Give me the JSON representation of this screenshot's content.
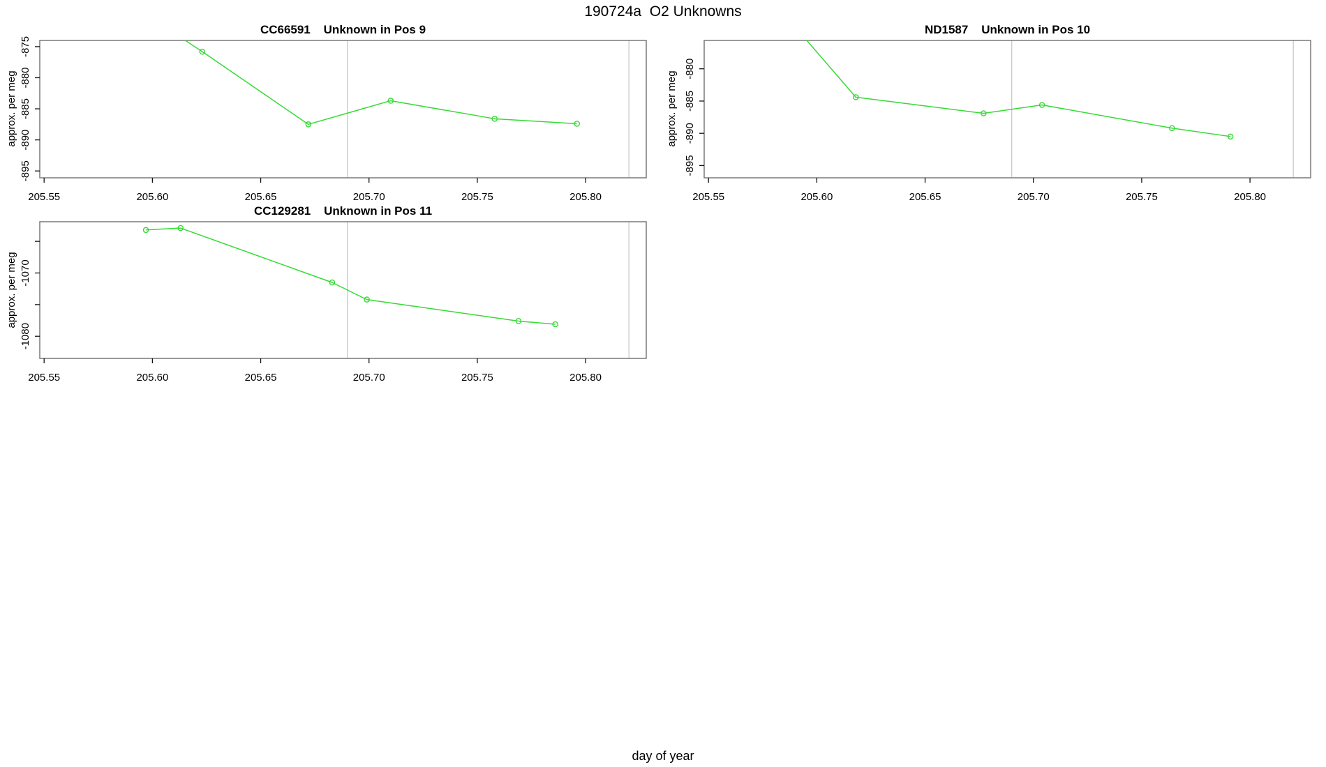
{
  "main_title": "190724a  O2 Unknowns",
  "outer_xlabel": "day of year",
  "colors": {
    "line": "#35DB35",
    "box": "#787878",
    "ref_line": "#c9c9c9",
    "tick": "#111111",
    "text": "#000000",
    "background": "#ffffff"
  },
  "chart_data": [
    {
      "type": "line",
      "title": "CC66591    Unknown in Pos 9",
      "xlabel": "",
      "ylabel": "approx. per meg",
      "marker": "open-circle",
      "grid": false,
      "xlim": [
        205.548,
        205.828
      ],
      "ylim": [
        -896.1,
        -874.0
      ],
      "x_ticks": [
        205.55,
        205.6,
        205.65,
        205.7,
        205.75,
        205.8
      ],
      "x_tick_labels": [
        "205.55",
        "205.60",
        "205.65",
        "205.70",
        "205.75",
        "205.80"
      ],
      "y_ticks": [
        -875,
        -880,
        -885,
        -890,
        -895
      ],
      "y_tick_labels": [
        "-875",
        "-880",
        "-885",
        "-890",
        "-895"
      ],
      "ref_lines_x": [
        205.69,
        205.82
      ],
      "x": [
        205.6,
        205.623,
        205.672,
        205.71,
        205.758,
        205.796
      ],
      "y": [
        -870.5,
        -875.8,
        -887.5,
        -883.7,
        -886.6,
        -887.4
      ]
    },
    {
      "type": "line",
      "title": "ND1587    Unknown in Pos 10",
      "xlabel": "",
      "ylabel": "approx. per meg",
      "marker": "open-circle",
      "grid": false,
      "xlim": [
        205.548,
        205.828
      ],
      "ylim": [
        -896.9,
        -875.6
      ],
      "x_ticks": [
        205.55,
        205.6,
        205.65,
        205.7,
        205.75,
        205.8
      ],
      "x_tick_labels": [
        "205.55",
        "205.60",
        "205.65",
        "205.70",
        "205.75",
        "205.80"
      ],
      "y_ticks": [
        -880,
        -885,
        -890,
        -895
      ],
      "y_tick_labels": [
        "-880",
        "-885",
        "-890",
        "-895"
      ],
      "ref_lines_x": [
        205.69,
        205.82
      ],
      "x": [
        205.59,
        205.618,
        205.677,
        205.704,
        205.764,
        205.791
      ],
      "y": [
        -873.5,
        -884.4,
        -886.9,
        -885.6,
        -889.2,
        -890.5
      ]
    },
    {
      "type": "line",
      "title": "CC129281    Unknown in Pos 11",
      "xlabel": "",
      "ylabel": "approx. per meg",
      "marker": "open-circle",
      "grid": false,
      "xlim": [
        205.548,
        205.828
      ],
      "ylim": [
        -1083.5,
        -1061.9
      ],
      "x_ticks": [
        205.55,
        205.6,
        205.65,
        205.7,
        205.75,
        205.8
      ],
      "x_tick_labels": [
        "205.55",
        "205.60",
        "205.65",
        "205.70",
        "205.75",
        "205.80"
      ],
      "y_ticks": [
        -1065,
        -1070,
        -1075,
        -1080
      ],
      "y_tick_labels": [
        "",
        "-1070",
        "",
        "-1080"
      ],
      "ref_lines_x": [
        205.69,
        205.82
      ],
      "x": [
        205.597,
        205.613,
        205.683,
        205.699,
        205.769,
        205.786
      ],
      "y": [
        -1063.2,
        -1062.9,
        -1071.5,
        -1074.2,
        -1077.6,
        -1078.1
      ]
    }
  ]
}
